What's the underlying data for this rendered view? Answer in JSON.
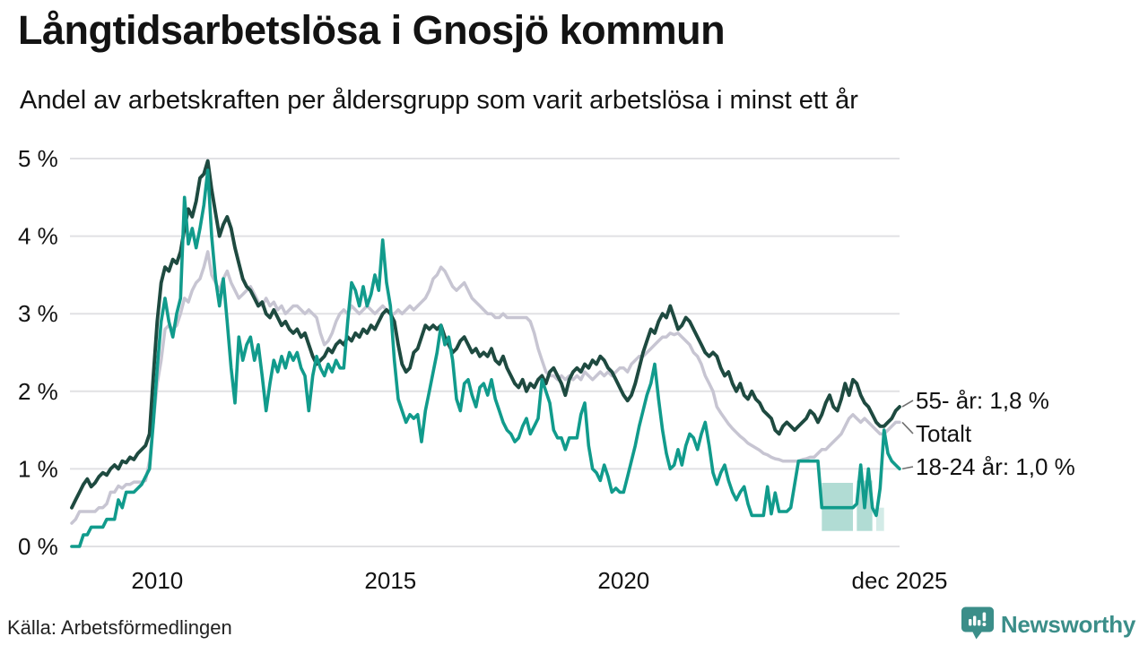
{
  "header": {
    "title": "Långtidsarbetslösa i Gnosjö kommun",
    "subtitle": "Andel av arbetskraften per åldersgrupp som varit arbetslösa i minst ett år"
  },
  "chart_data": {
    "type": "line",
    "title": "Långtidsarbetslösa i Gnosjö kommun",
    "subtitle": "Andel av arbetskraften per åldersgrupp som varit arbetslösa i minst ett år",
    "unit": "%",
    "frequency": "monthly",
    "start_month": "2008-03",
    "end_month": "2025-12",
    "ylim": [
      0,
      5
    ],
    "grid": "horizontal",
    "y_ticks": [
      "0 %",
      "1 %",
      "2 %",
      "3 %",
      "4 %",
      "5 %"
    ],
    "x_ticks": [
      {
        "label": "2010",
        "month": "2010-01"
      },
      {
        "label": "2015",
        "month": "2015-01"
      },
      {
        "label": "2020",
        "month": "2020-01"
      },
      {
        "label": "dec 2025",
        "month": "2025-12"
      }
    ],
    "colors": {
      "grid": "#e1e1e4",
      "connector": "#6f6f6f",
      "band": "#a8d8cf"
    },
    "series": [
      {
        "name": "Totalt",
        "end_label": "Totalt",
        "end_value": 1.6,
        "color": "#c7c5d2",
        "values": [
          0.3,
          0.35,
          0.45,
          0.45,
          0.45,
          0.45,
          0.45,
          0.5,
          0.5,
          0.55,
          0.7,
          0.7,
          0.78,
          0.75,
          0.8,
          0.8,
          0.83,
          0.83,
          0.83,
          0.85,
          1.1,
          1.6,
          2.1,
          2.4,
          2.8,
          2.85,
          2.8,
          2.85,
          3.0,
          3.2,
          3.15,
          3.3,
          3.4,
          3.45,
          3.6,
          3.8,
          3.5,
          3.4,
          3.3,
          3.45,
          3.55,
          3.4,
          3.3,
          3.2,
          3.25,
          3.3,
          3.35,
          3.25,
          3.15,
          3.1,
          3.2,
          3.1,
          3.15,
          3.05,
          3.1,
          3.0,
          3.05,
          3.1,
          3.1,
          3.05,
          3.0,
          3.05,
          3.0,
          2.95,
          2.75,
          2.6,
          2.65,
          2.75,
          2.9,
          3.0,
          3.05,
          3.0,
          3.1,
          3.05,
          3.0,
          3.05,
          3.1,
          3.05,
          3.0,
          3.05,
          3.1,
          3.05,
          3.0,
          3.0,
          3.05,
          3.0,
          3.05,
          3.1,
          3.05,
          3.1,
          3.15,
          3.2,
          3.3,
          3.45,
          3.5,
          3.6,
          3.55,
          3.45,
          3.35,
          3.3,
          3.35,
          3.4,
          3.3,
          3.2,
          3.15,
          3.1,
          3.05,
          3.0,
          3.0,
          2.95,
          2.95,
          3.0,
          2.95,
          2.95,
          2.95,
          2.95,
          2.95,
          2.95,
          2.9,
          2.75,
          2.55,
          2.4,
          2.25,
          2.2,
          2.2,
          2.15,
          2.2,
          2.15,
          2.2,
          2.15,
          2.2,
          2.15,
          2.25,
          2.2,
          2.15,
          2.2,
          2.25,
          2.2,
          2.25,
          2.2,
          2.25,
          2.3,
          2.3,
          2.25,
          2.35,
          2.4,
          2.45,
          2.45,
          2.5,
          2.55,
          2.6,
          2.65,
          2.7,
          2.7,
          2.75,
          2.73,
          2.75,
          2.7,
          2.65,
          2.6,
          2.5,
          2.45,
          2.35,
          2.2,
          2.1,
          2.0,
          1.8,
          1.72,
          1.65,
          1.58,
          1.52,
          1.47,
          1.42,
          1.38,
          1.33,
          1.3,
          1.27,
          1.24,
          1.2,
          1.18,
          1.15,
          1.13,
          1.12,
          1.1,
          1.1,
          1.1,
          1.1,
          1.1,
          1.12,
          1.13,
          1.15,
          1.15,
          1.2,
          1.25,
          1.25,
          1.3,
          1.35,
          1.4,
          1.45,
          1.55,
          1.65,
          1.7,
          1.65,
          1.6,
          1.65,
          1.6,
          1.55,
          1.5,
          1.45,
          1.45,
          1.5,
          1.55,
          1.6,
          1.6
        ]
      },
      {
        "name": "55- år",
        "end_label": "55- år: 1,8 %",
        "end_value": 1.8,
        "color": "#1e4a40",
        "values": [
          0.5,
          0.6,
          0.7,
          0.8,
          0.87,
          0.77,
          0.82,
          0.9,
          0.95,
          0.92,
          1.0,
          1.05,
          1.0,
          1.1,
          1.08,
          1.15,
          1.12,
          1.2,
          1.25,
          1.3,
          1.45,
          2.2,
          2.9,
          3.4,
          3.6,
          3.55,
          3.7,
          3.65,
          3.8,
          4.1,
          4.35,
          4.25,
          4.45,
          4.75,
          4.8,
          4.97,
          4.6,
          4.3,
          4.0,
          4.15,
          4.25,
          4.1,
          3.85,
          3.65,
          3.45,
          3.35,
          3.3,
          3.2,
          3.1,
          3.15,
          3.0,
          2.95,
          3.05,
          2.95,
          2.85,
          2.9,
          2.8,
          2.75,
          2.8,
          2.7,
          2.75,
          2.6,
          2.45,
          2.35,
          2.4,
          2.45,
          2.55,
          2.5,
          2.6,
          2.65,
          2.6,
          2.7,
          2.65,
          2.75,
          2.7,
          2.8,
          2.75,
          2.85,
          2.8,
          2.9,
          3.0,
          3.05,
          3.0,
          2.9,
          2.6,
          2.35,
          2.25,
          2.3,
          2.5,
          2.55,
          2.7,
          2.85,
          2.8,
          2.85,
          2.8,
          2.85,
          2.7,
          2.6,
          2.5,
          2.55,
          2.65,
          2.7,
          2.6,
          2.5,
          2.55,
          2.45,
          2.5,
          2.45,
          2.55,
          2.4,
          2.35,
          2.45,
          2.3,
          2.2,
          2.1,
          2.05,
          2.15,
          2.0,
          2.1,
          2.05,
          2.15,
          2.2,
          2.1,
          2.25,
          2.3,
          2.2,
          2.1,
          1.95,
          2.15,
          2.25,
          2.3,
          2.25,
          2.35,
          2.3,
          2.4,
          2.35,
          2.45,
          2.4,
          2.3,
          2.25,
          2.15,
          2.05,
          1.95,
          1.88,
          1.95,
          2.1,
          2.3,
          2.5,
          2.65,
          2.8,
          2.75,
          2.9,
          3.0,
          2.95,
          3.1,
          2.95,
          2.8,
          2.85,
          2.95,
          2.9,
          2.8,
          2.7,
          2.6,
          2.5,
          2.45,
          2.5,
          2.45,
          2.3,
          2.2,
          2.25,
          2.1,
          2.0,
          2.1,
          1.95,
          1.9,
          2.0,
          1.9,
          1.85,
          1.75,
          1.7,
          1.65,
          1.5,
          1.45,
          1.55,
          1.6,
          1.55,
          1.5,
          1.55,
          1.6,
          1.65,
          1.75,
          1.7,
          1.6,
          1.7,
          1.85,
          1.95,
          1.8,
          1.75,
          1.9,
          2.1,
          1.95,
          2.15,
          2.1,
          1.95,
          1.85,
          1.8,
          1.7,
          1.6,
          1.55,
          1.55,
          1.6,
          1.65,
          1.75,
          1.8
        ]
      },
      {
        "name": "18-24 år",
        "end_label": "18-24 år: 1,0 %",
        "end_value": 1.0,
        "color": "#119b8c",
        "values": [
          0.0,
          0.0,
          0.0,
          0.15,
          0.15,
          0.25,
          0.25,
          0.25,
          0.25,
          0.35,
          0.35,
          0.35,
          0.6,
          0.5,
          0.7,
          0.7,
          0.7,
          0.75,
          0.8,
          0.9,
          1.0,
          1.6,
          2.3,
          2.9,
          3.2,
          2.9,
          2.7,
          3.0,
          3.2,
          4.5,
          3.9,
          4.1,
          3.85,
          4.1,
          4.4,
          4.85,
          4.0,
          3.45,
          3.1,
          3.45,
          2.9,
          2.3,
          1.85,
          2.7,
          2.4,
          2.6,
          2.7,
          2.4,
          2.6,
          2.2,
          1.75,
          2.1,
          2.4,
          2.25,
          2.45,
          2.3,
          2.5,
          2.4,
          2.5,
          2.3,
          2.2,
          1.75,
          2.2,
          2.45,
          2.3,
          2.2,
          2.35,
          2.25,
          2.4,
          2.3,
          2.3,
          2.9,
          3.4,
          3.3,
          3.1,
          3.35,
          3.1,
          3.25,
          3.5,
          3.3,
          3.95,
          3.4,
          3.1,
          2.4,
          1.9,
          1.75,
          1.6,
          1.7,
          1.65,
          1.7,
          1.35,
          1.75,
          2.0,
          2.25,
          2.5,
          2.85,
          2.6,
          2.7,
          2.4,
          1.9,
          1.75,
          2.1,
          2.15,
          1.95,
          1.8,
          2.05,
          2.1,
          1.95,
          2.15,
          1.9,
          1.75,
          1.6,
          1.5,
          1.45,
          1.35,
          1.4,
          1.55,
          1.65,
          1.45,
          1.55,
          1.65,
          2.15,
          2.0,
          1.85,
          1.5,
          1.4,
          1.4,
          1.25,
          1.4,
          1.4,
          1.4,
          1.7,
          1.85,
          1.3,
          1.0,
          0.95,
          0.85,
          1.05,
          0.9,
          0.7,
          0.75,
          0.7,
          0.7,
          0.9,
          1.1,
          1.3,
          1.55,
          1.75,
          1.95,
          2.1,
          2.35,
          1.9,
          1.5,
          1.2,
          1.0,
          1.05,
          1.25,
          1.05,
          1.3,
          1.45,
          1.4,
          1.25,
          1.45,
          1.6,
          1.3,
          0.95,
          0.8,
          0.95,
          1.05,
          0.85,
          0.7,
          0.6,
          0.7,
          0.77,
          0.55,
          0.4,
          0.4,
          0.4,
          0.4,
          0.77,
          0.42,
          0.69,
          0.45,
          0.45,
          0.45,
          0.5,
          0.8,
          1.1,
          1.1,
          1.1,
          1.1,
          1.1,
          1.1,
          0.5,
          0.5,
          0.5,
          0.5,
          0.5,
          0.5,
          0.5,
          0.5,
          0.5,
          0.55,
          1.05,
          0.5,
          1.0,
          0.5,
          0.4,
          0.75,
          1.5,
          1.2,
          1.1,
          1.05,
          1.0
        ]
      }
    ],
    "uncertainty_band": {
      "note": "shaded band on 18-24 år series near end",
      "segments": [
        {
          "start": "2024-04",
          "end": "2024-12",
          "top": 0.82,
          "bottom": 0.2,
          "faint": false
        },
        {
          "start": "2025-01",
          "end": "2025-05",
          "top": 0.85,
          "bottom": 0.2,
          "faint": false
        },
        {
          "start": "2025-06",
          "end": "2025-08",
          "top": 0.5,
          "bottom": 0.2,
          "faint": true
        }
      ]
    }
  },
  "footer": {
    "source": "Källa: Arbetsförmedlingen",
    "brand": "Newsworthy"
  }
}
